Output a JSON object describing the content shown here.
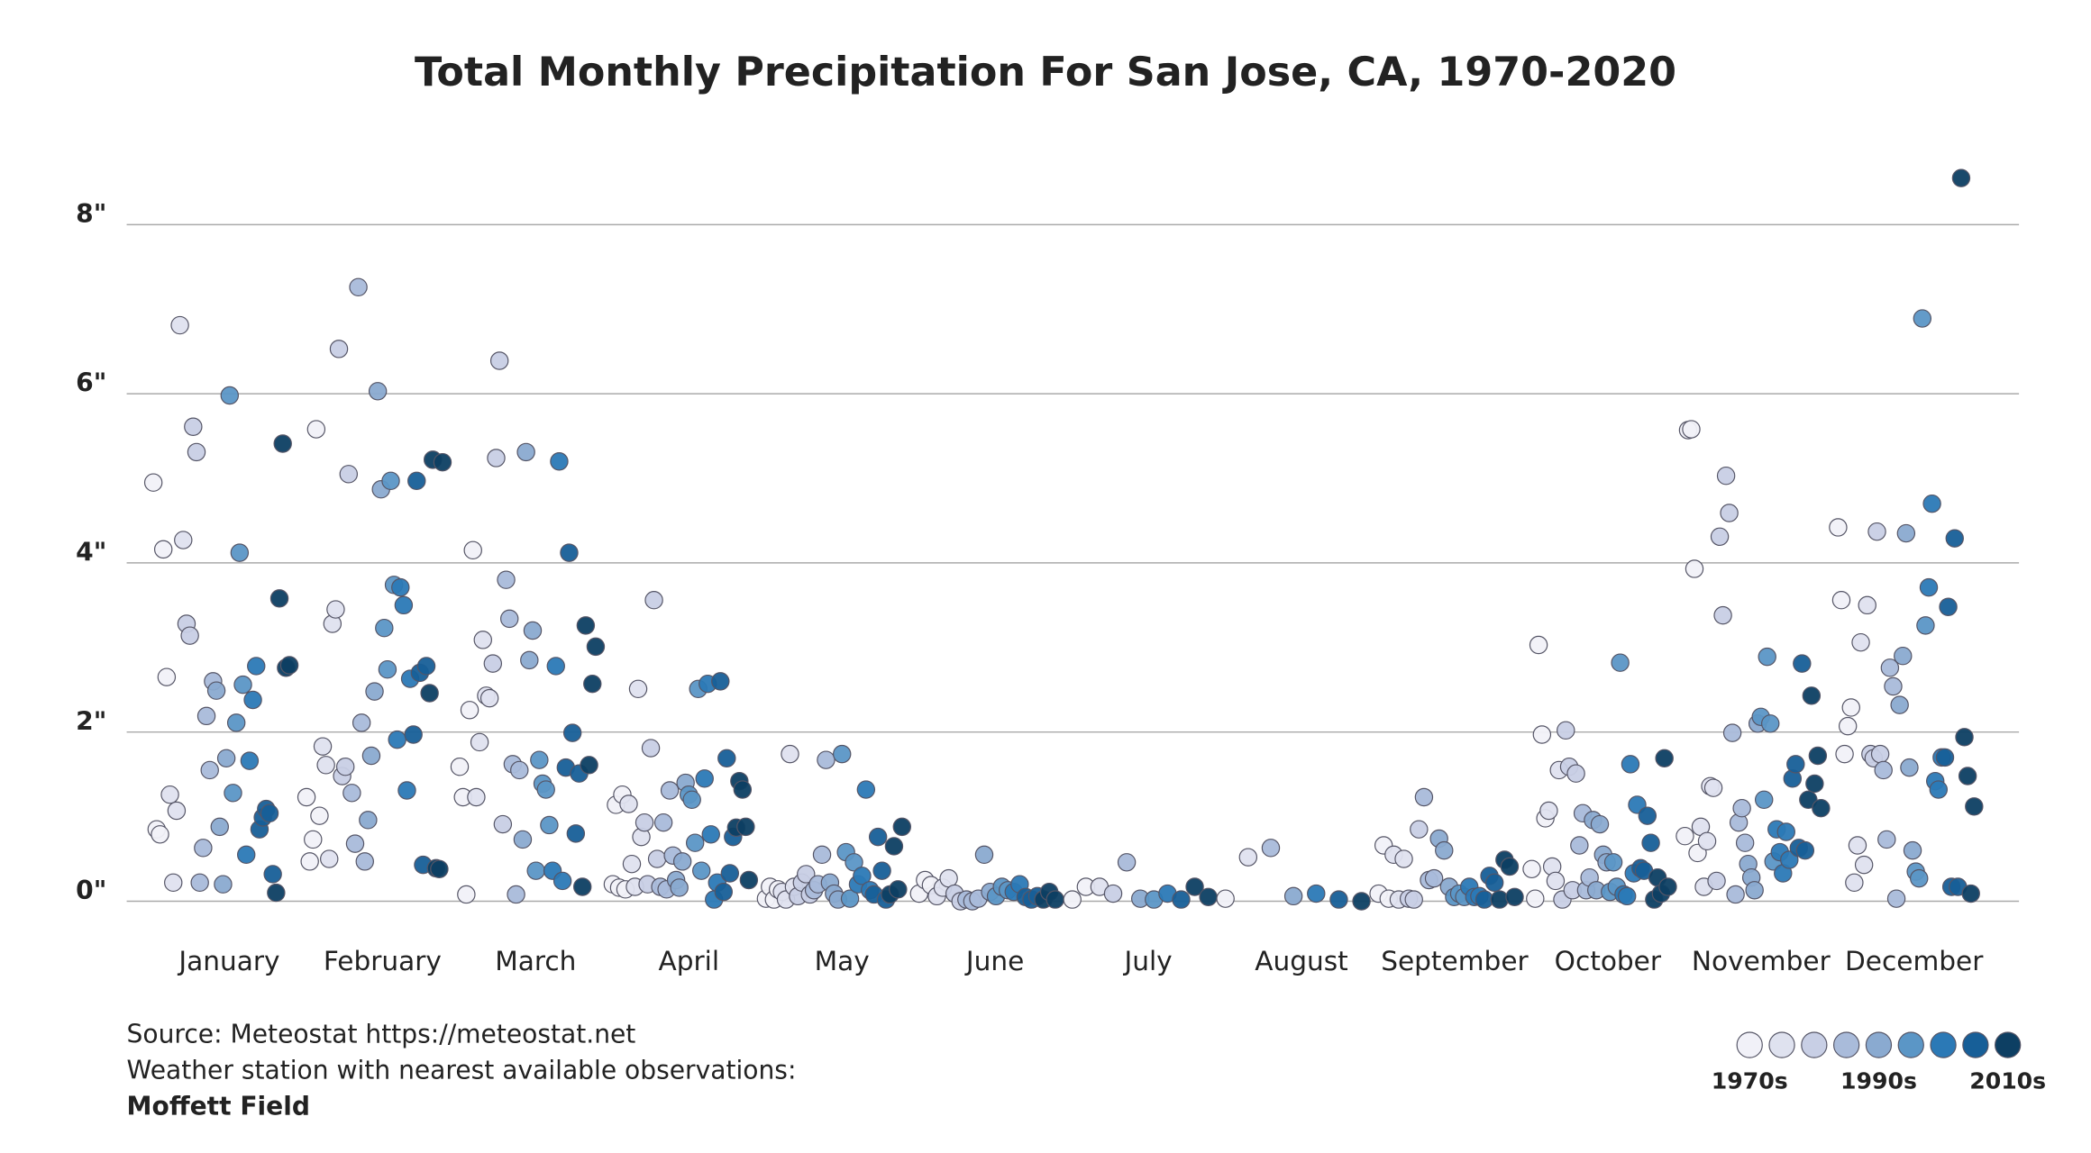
{
  "chart_data": {
    "type": "strip",
    "title": "Total Monthly Precipitation For San Jose, CA, 1970-2020",
    "categories": [
      "January",
      "February",
      "March",
      "April",
      "May",
      "June",
      "July",
      "August",
      "September",
      "October",
      "November",
      "December"
    ],
    "values": [
      [
        4.95,
        0.85,
        0.79,
        4.16,
        2.65,
        1.26,
        0.22,
        1.07,
        6.81,
        4.27,
        3.28,
        3.14,
        5.61,
        5.31,
        0.22,
        0.63,
        2.19,
        1.55,
        2.6,
        2.49,
        0.88,
        0.2,
        1.69,
        5.98,
        1.28,
        2.11,
        4.12,
        2.56,
        0.55,
        1.66,
        2.38,
        2.78,
        0.85,
        0.99,
        1.09,
        1.04,
        0.32,
        0.1,
        3.58,
        5.41,
        2.76,
        2.79
      ],
      [
        1.23,
        0.47,
        0.73,
        5.58,
        1.01,
        1.83,
        1.61,
        0.5,
        3.28,
        3.45,
        6.53,
        1.48,
        1.59,
        5.05,
        1.28,
        0.68,
        7.26,
        2.11,
        0.47,
        0.96,
        1.72,
        2.48,
        6.03,
        4.87,
        3.23,
        2.74,
        4.97,
        3.74,
        1.91,
        3.71,
        3.5,
        1.31,
        2.63,
        1.97,
        4.97,
        2.7,
        0.43,
        2.78,
        2.46,
        5.22,
        0.39,
        0.38,
        5.19
      ],
      [
        1.59,
        1.23,
        0.08,
        2.26,
        4.15,
        1.23,
        1.88,
        3.09,
        2.43,
        2.4,
        2.81,
        5.24,
        6.39,
        0.91,
        3.8,
        3.34,
        1.62,
        0.08,
        1.55,
        0.73,
        5.31,
        2.85,
        3.2,
        0.36,
        1.67,
        1.39,
        1.32,
        0.9,
        0.36,
        2.78,
        5.2,
        0.24,
        1.58,
        4.12,
        1.99,
        0.8,
        1.51,
        0.17,
        3.26,
        1.61,
        2.57,
        3.01
      ],
      [
        0.2,
        1.14,
        0.16,
        1.26,
        0.14,
        1.15,
        0.44,
        0.17,
        2.51,
        0.76,
        0.93,
        0.2,
        1.81,
        3.56,
        0.5,
        0.17,
        0.93,
        0.14,
        1.31,
        0.54,
        0.25,
        0.16,
        0.47,
        1.4,
        1.26,
        1.2,
        0.69,
        2.51,
        0.36,
        1.45,
        2.57,
        0.79,
        0.02,
        0.22,
        2.6,
        0.11,
        1.69,
        0.33,
        0.76,
        0.87,
        1.42,
        1.32,
        0.88,
        0.25
      ],
      [
        0.03,
        0.17,
        0.02,
        0.14,
        0.11,
        0.02,
        1.74,
        0.17,
        0.06,
        0.22,
        0.32,
        0.08,
        0.13,
        0.2,
        0.55,
        1.67,
        0.22,
        0.09,
        0.02,
        1.74,
        0.58,
        0.03,
        0.46,
        0.2,
        0.3,
        1.32,
        0.13,
        0.08,
        0.76,
        0.36,
        0.02,
        0.08,
        0.65,
        0.14,
        0.88
      ],
      [
        0.09,
        0.25,
        0.19,
        0.06,
        0.16,
        0.27,
        0.09,
        0,
        0.02,
        0,
        0.03,
        0.55,
        0.11,
        0.06,
        0.17,
        0.13,
        0.11,
        0.2,
        0.05,
        0.02,
        0.06,
        0.02,
        0.11,
        0.02
      ],
      [
        0.02,
        0.17,
        0.17,
        0.09,
        0.46,
        0.03,
        0.02,
        0.09,
        0.02,
        0.17,
        0.05
      ],
      [
        0.03,
        0.52,
        0.63,
        0.06,
        0.09,
        0.02,
        0
      ],
      [
        0.09,
        0.66,
        0.03,
        0.55,
        0.02,
        0.5,
        0.03,
        0.02,
        0.85,
        1.23,
        0.25,
        0.27,
        0.74,
        0.6,
        0.17,
        0.05,
        0.09,
        0.05,
        0.17,
        0.05,
        0.06,
        0.02,
        0.3,
        0.22,
        0.02,
        0.49,
        0.41,
        0.05
      ],
      [
        0.38,
        0.03,
        3.03,
        1.97,
        0.98,
        1.07,
        0.41,
        0.24,
        1.55,
        0.02,
        2.02,
        1.59,
        0.13,
        1.51,
        0.66,
        1.04,
        0.13,
        0.28,
        0.96,
        0.13,
        0.91,
        0.55,
        0.46,
        0.11,
        0.46,
        0.17,
        2.82,
        0.08,
        0.06,
        1.62,
        0.33,
        1.14,
        0.39,
        0.36,
        1.01,
        0.69,
        0.02,
        0.28,
        0.09,
        1.69,
        0.17
      ],
      [
        0.77,
        5.57,
        5.58,
        3.93,
        0.57,
        0.88,
        0.17,
        0.71,
        1.36,
        1.34,
        0.24,
        4.31,
        3.38,
        5.03,
        4.59,
        1.99,
        0.08,
        0.93,
        1.1,
        0.69,
        0.44,
        0.28,
        0.13,
        2.1,
        2.18,
        1.2,
        2.89,
        2.1,
        0.47,
        0.85,
        0.58,
        0.33,
        0.82,
        0.49,
        1.45,
        1.62,
        0.63,
        2.81,
        0.6,
        1.2,
        2.43,
        1.39,
        1.72,
        1.1
      ],
      [
        4.42,
        3.56,
        1.74,
        2.07,
        2.29,
        0.22,
        0.66,
        3.06,
        0.43,
        3.5,
        1.74,
        1.69,
        4.37,
        1.74,
        1.55,
        0.73,
        2.76,
        2.54,
        0.03,
        2.32,
        2.9,
        4.35,
        1.58,
        0.6,
        0.35,
        0.27,
        6.89,
        3.26,
        3.71,
        4.7,
        1.42,
        1.32,
        1.7,
        1.7,
        3.48,
        0.17,
        4.29,
        0.17,
        8.55,
        1.94,
        1.48,
        0.09,
        1.12
      ]
    ],
    "ylim": [
      -0.25,
      9
    ],
    "yticks": [
      {
        "value": 0,
        "label": "0\""
      },
      {
        "value": 2,
        "label": "2\""
      },
      {
        "value": 4,
        "label": "4\""
      },
      {
        "value": 6,
        "label": "6\""
      },
      {
        "value": 8,
        "label": "8\""
      }
    ],
    "grid": true,
    "legend": {
      "colors": [
        "#f1f1f8",
        "#dfe2ef",
        "#c8cfe5",
        "#a9bbda",
        "#8aaad0",
        "#5b96c6",
        "#2b79b6",
        "#175f98",
        "#0d3f63"
      ],
      "labels": [
        "1970s",
        null,
        null,
        null,
        "1990s",
        null,
        null,
        null,
        "2010s"
      ]
    },
    "notes": [
      "Source: Meteostat https://meteostat.net",
      "Weather station with nearest available observations:",
      "Moffett Field"
    ]
  }
}
